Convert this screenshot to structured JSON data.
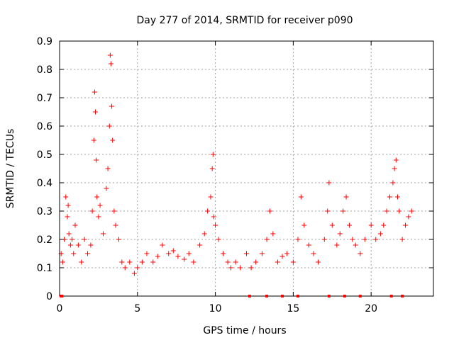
{
  "chart_data": {
    "type": "scatter",
    "title": "Day 277 of 2014, SRMTID for receiver p090",
    "xlabel": "GPS time / hours",
    "ylabel": "SRMTID / TECUs",
    "xlim": [
      0,
      24
    ],
    "ylim": [
      0,
      0.9
    ],
    "xticks": [
      0,
      5,
      10,
      15,
      20
    ],
    "xtick_labels": [
      "0",
      "5",
      "10",
      "15",
      "20"
    ],
    "yticks": [
      0,
      0.1,
      0.2,
      0.3,
      0.4,
      0.5,
      0.6,
      0.7,
      0.8,
      0.9
    ],
    "ytick_labels": [
      "0",
      "0.1",
      "0.2",
      "0.3",
      "0.4",
      "0.5",
      "0.6",
      "0.7",
      "0.8",
      "0.9"
    ],
    "grid": true,
    "marker": "+",
    "color": "#ff0000",
    "series": [
      {
        "name": "SRMTID",
        "x": [
          0.1,
          0.2,
          0.3,
          0.4,
          0.5,
          0.55,
          0.6,
          0.7,
          0.8,
          0.9,
          1.0,
          1.2,
          1.4,
          1.6,
          1.8,
          2.0,
          2.1,
          2.2,
          2.25,
          2.3,
          2.35,
          2.4,
          2.5,
          2.6,
          2.8,
          3.0,
          3.1,
          3.2,
          3.25,
          3.3,
          3.35,
          3.4,
          3.5,
          3.6,
          3.8,
          4.0,
          4.2,
          4.5,
          4.8,
          5.0,
          5.3,
          5.6,
          6.0,
          6.3,
          6.6,
          7.0,
          7.3,
          7.6,
          8.0,
          8.3,
          8.6,
          9.0,
          9.3,
          9.5,
          9.7,
          9.8,
          9.85,
          9.9,
          10.0,
          10.2,
          10.5,
          10.8,
          11.0,
          11.3,
          11.6,
          12.0,
          12.3,
          12.6,
          13.0,
          13.3,
          13.5,
          13.7,
          14.0,
          14.3,
          14.6,
          15.0,
          15.3,
          15.5,
          15.7,
          16.0,
          16.3,
          16.6,
          17.0,
          17.2,
          17.3,
          17.5,
          17.8,
          18.0,
          18.2,
          18.4,
          18.6,
          18.8,
          19.0,
          19.3,
          19.6,
          20.0,
          20.3,
          20.6,
          20.8,
          21.0,
          21.2,
          21.4,
          21.5,
          21.6,
          21.7,
          21.8,
          22.0,
          22.2,
          22.4,
          22.6
        ],
        "y": [
          0.15,
          0.12,
          0.2,
          0.35,
          0.28,
          0.32,
          0.22,
          0.18,
          0.2,
          0.15,
          0.25,
          0.18,
          0.12,
          0.2,
          0.15,
          0.18,
          0.3,
          0.55,
          0.72,
          0.65,
          0.48,
          0.35,
          0.28,
          0.32,
          0.22,
          0.38,
          0.45,
          0.6,
          0.85,
          0.82,
          0.67,
          0.55,
          0.3,
          0.25,
          0.2,
          0.12,
          0.1,
          0.12,
          0.08,
          0.1,
          0.12,
          0.15,
          0.12,
          0.14,
          0.18,
          0.15,
          0.16,
          0.14,
          0.13,
          0.15,
          0.12,
          0.18,
          0.22,
          0.3,
          0.35,
          0.45,
          0.5,
          0.28,
          0.25,
          0.2,
          0.15,
          0.12,
          0.1,
          0.12,
          0.1,
          0.15,
          0.1,
          0.12,
          0.15,
          0.2,
          0.3,
          0.22,
          0.12,
          0.14,
          0.15,
          0.12,
          0.2,
          0.35,
          0.25,
          0.18,
          0.15,
          0.12,
          0.2,
          0.3,
          0.4,
          0.25,
          0.18,
          0.22,
          0.3,
          0.35,
          0.25,
          0.2,
          0.18,
          0.15,
          0.2,
          0.25,
          0.2,
          0.22,
          0.25,
          0.3,
          0.35,
          0.4,
          0.45,
          0.48,
          0.35,
          0.3,
          0.2,
          0.25,
          0.28,
          0.3
        ]
      }
    ],
    "markers_on_axis": [
      0.1,
      0.15,
      12.2,
      13.3,
      14.3,
      15.3,
      17.3,
      18.3,
      19.3,
      21.3,
      22.0
    ]
  }
}
